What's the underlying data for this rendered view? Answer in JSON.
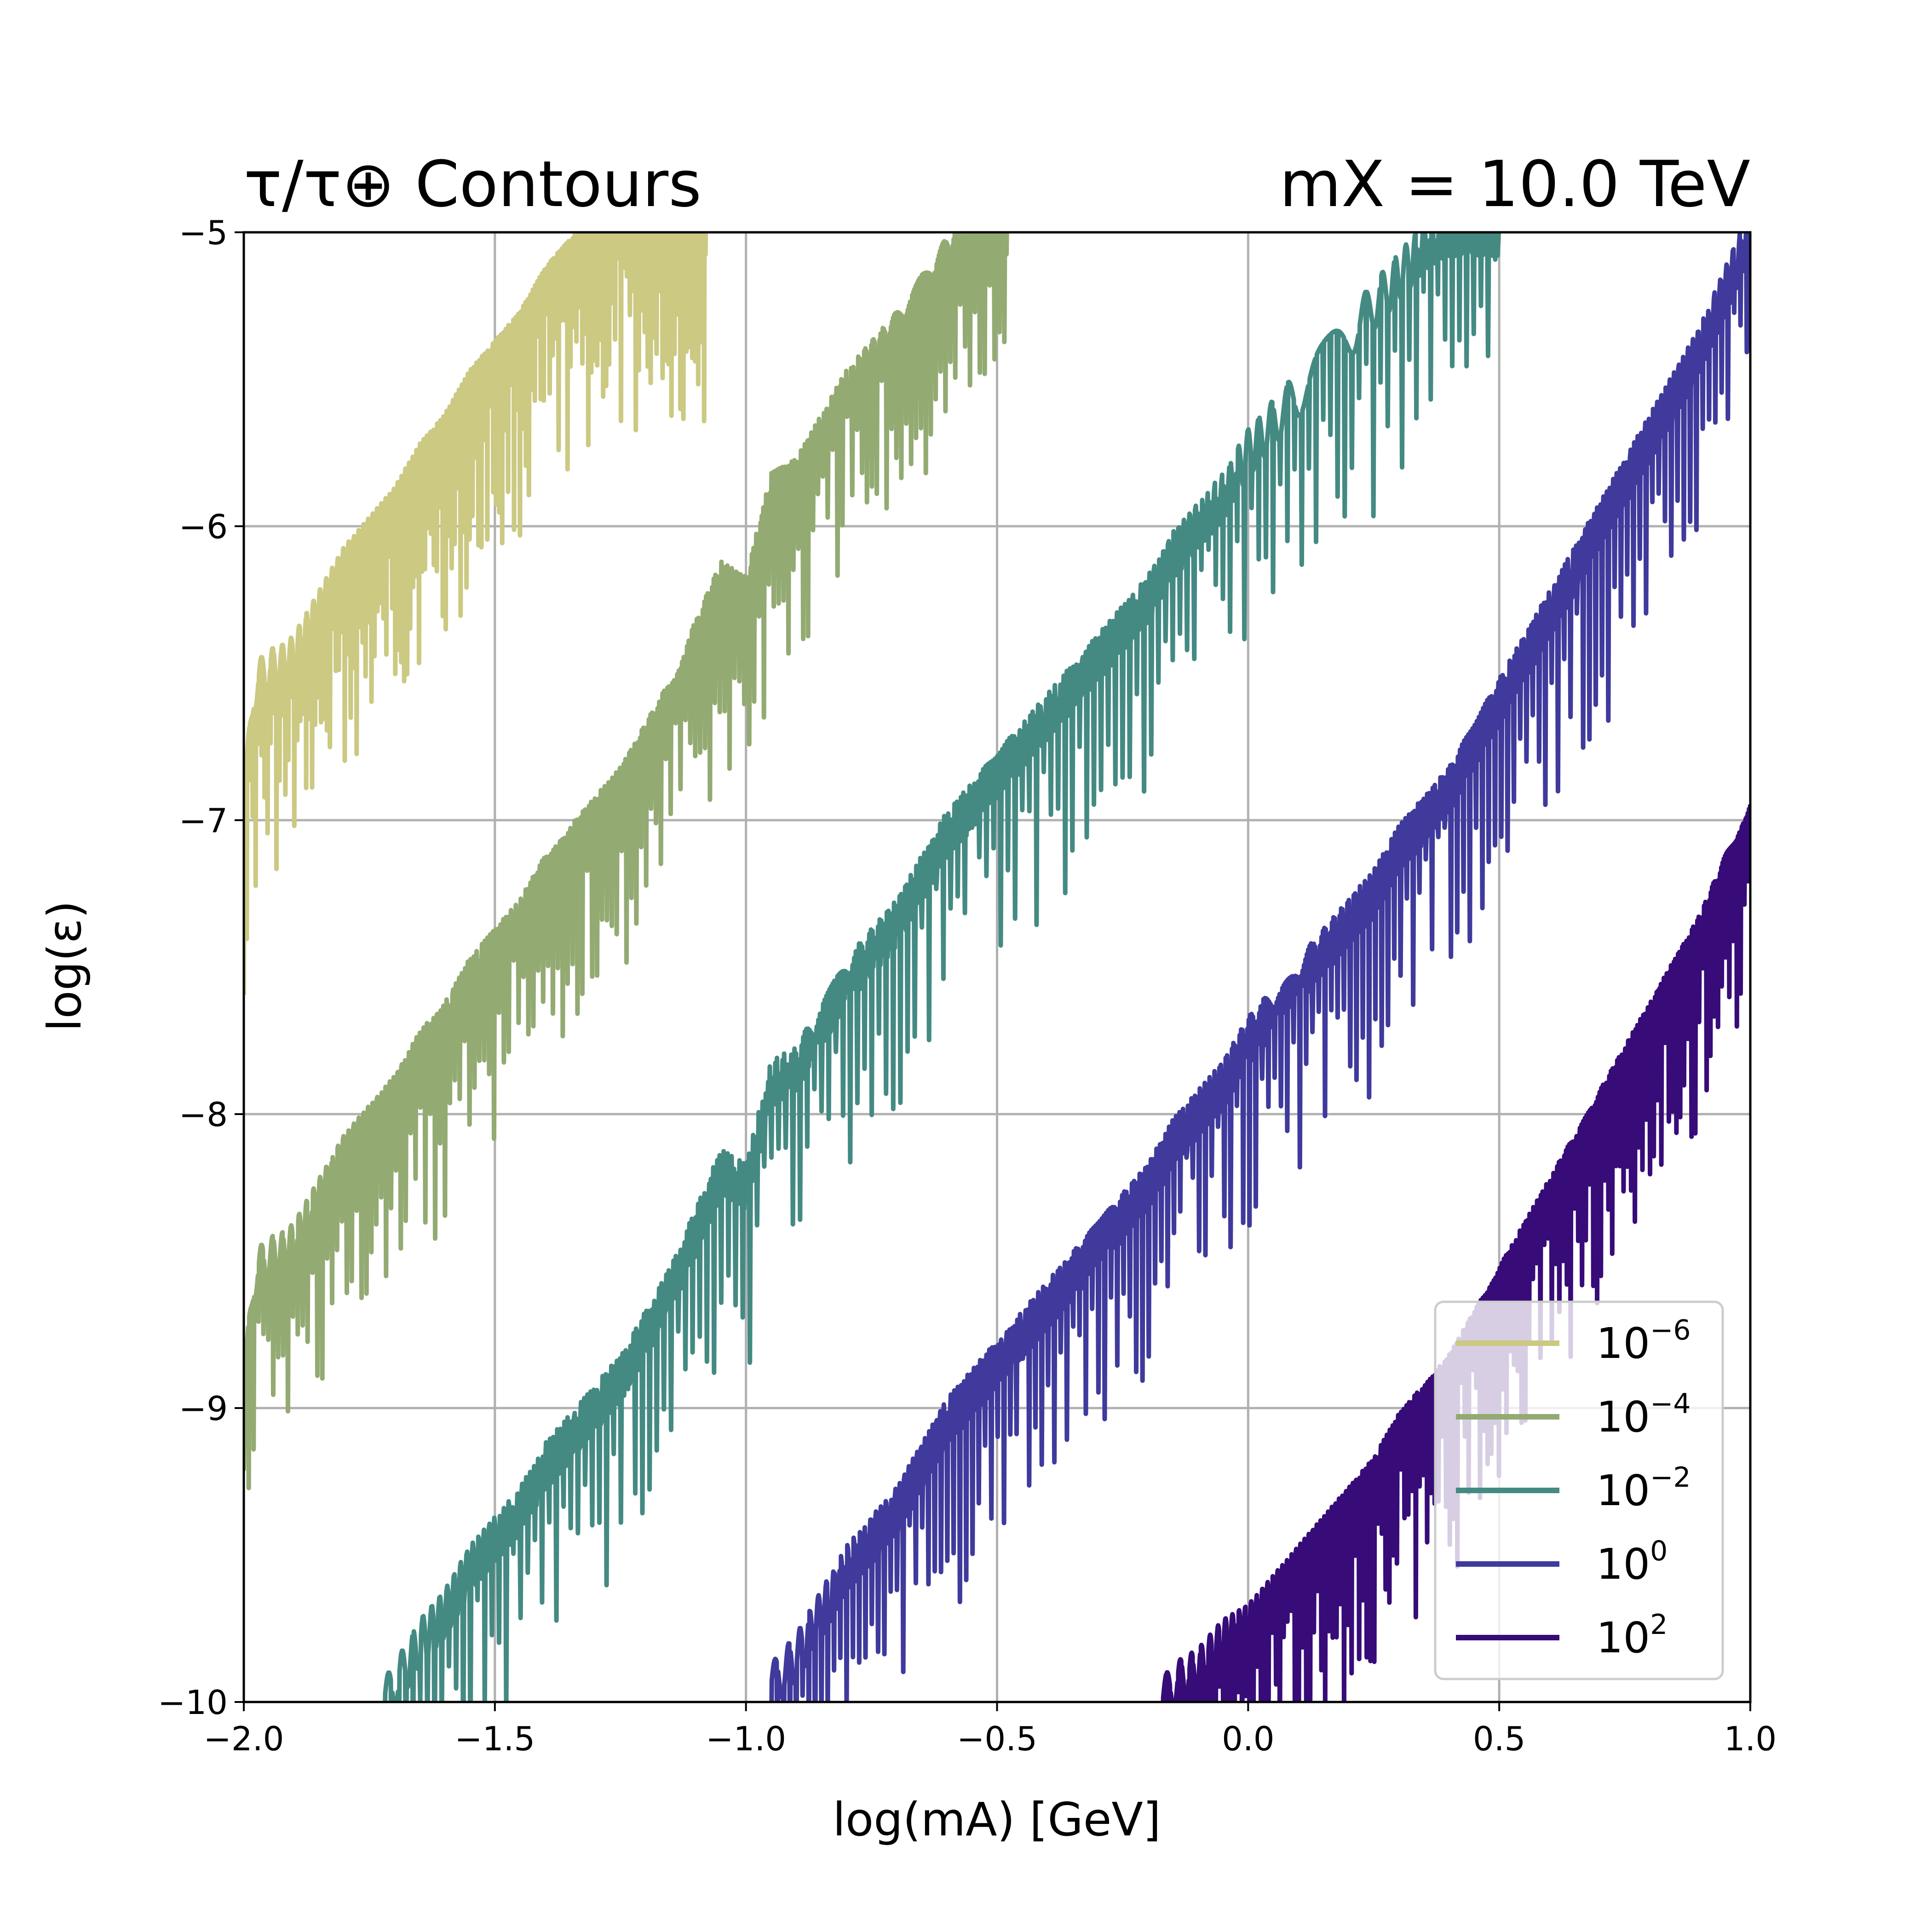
{
  "chart_data": {
    "type": "line",
    "title_left": "τ/τ⊕ Contours",
    "title_right": "mX = 10.0 TeV",
    "xlabel": "log(mA) [GeV]",
    "ylabel": "log(ε)",
    "xlim": [
      -2.0,
      1.0
    ],
    "ylim": [
      -10,
      -5
    ],
    "xticks": [
      -2.0,
      -1.5,
      -1.0,
      -0.5,
      0.0,
      0.5,
      1.0
    ],
    "xtick_labels": [
      "−2.0",
      "−1.5",
      "−1.0",
      "−0.5",
      "0.0",
      "0.5",
      "1.0"
    ],
    "yticks": [
      -10,
      -9,
      -8,
      -7,
      -6,
      -5
    ],
    "ytick_labels": [
      "−10",
      "−9",
      "−8",
      "−7",
      "−6",
      "−5"
    ],
    "grid": true,
    "legend_position": "bottom-right",
    "series": [
      {
        "name": "10^-6",
        "base": "10",
        "exponent": "−6",
        "color": "#cbc982",
        "x": [
          -2.0,
          -1.98,
          -1.95,
          -1.92,
          -1.9,
          -1.85,
          -1.8,
          -1.75,
          -1.7,
          -1.65,
          -1.6,
          -1.55,
          -1.5,
          -1.45,
          -1.4,
          -1.35,
          -1.3,
          -1.25,
          -1.2,
          -1.15,
          -1.1,
          -1.08
        ],
        "y": [
          -7.0,
          -6.55,
          -6.5,
          -6.48,
          -6.45,
          -6.3,
          -6.15,
          -6.05,
          -5.95,
          -5.8,
          -5.7,
          -5.55,
          -5.45,
          -5.35,
          -5.2,
          -5.1,
          -5.02,
          -5.0,
          -5.0,
          -5.0,
          -5.0,
          -5.0
        ]
      },
      {
        "name": "10^-4",
        "base": "10",
        "exponent": "−4",
        "color": "#93aa72",
        "x": [
          -2.0,
          -1.98,
          -1.95,
          -1.92,
          -1.9,
          -1.85,
          -1.8,
          -1.75,
          -1.7,
          -1.65,
          -1.6,
          -1.55,
          -1.5,
          -1.45,
          -1.4,
          -1.35,
          -1.3,
          -1.25,
          -1.2,
          -1.15,
          -1.1,
          -1.05,
          -1.0,
          -0.95,
          -0.9,
          -0.85,
          -0.8,
          -0.75,
          -0.7,
          -0.65,
          -0.6,
          -0.55,
          -0.5,
          -0.48
        ],
        "y": [
          -9.0,
          -8.55,
          -8.5,
          -8.48,
          -8.45,
          -8.3,
          -8.15,
          -8.05,
          -7.95,
          -7.8,
          -7.7,
          -7.55,
          -7.45,
          -7.35,
          -7.2,
          -7.1,
          -7.0,
          -6.9,
          -6.75,
          -6.6,
          -6.4,
          -6.2,
          -6.25,
          -5.9,
          -5.85,
          -5.7,
          -5.55,
          -5.45,
          -5.35,
          -5.2,
          -5.1,
          -5.02,
          -5.0,
          -5.0
        ]
      },
      {
        "name": "10^-2",
        "base": "10",
        "exponent": "−2",
        "color": "#448a83",
        "x": [
          -1.72,
          -1.7,
          -1.65,
          -1.6,
          -1.55,
          -1.5,
          -1.45,
          -1.4,
          -1.35,
          -1.3,
          -1.25,
          -1.2,
          -1.15,
          -1.1,
          -1.05,
          -1.0,
          -0.95,
          -0.9,
          -0.85,
          -0.8,
          -0.75,
          -0.7,
          -0.65,
          -0.6,
          -0.55,
          -0.5,
          -0.45,
          -0.4,
          -0.35,
          -0.3,
          -0.25,
          -0.2,
          -0.15,
          -0.1,
          -0.05,
          0.0,
          0.05,
          0.1,
          0.15,
          0.2,
          0.25,
          0.3,
          0.35,
          0.4,
          0.45,
          0.5
        ],
        "y": [
          -10.0,
          -9.95,
          -9.8,
          -9.7,
          -9.55,
          -9.45,
          -9.35,
          -9.2,
          -9.1,
          -9.0,
          -8.9,
          -8.75,
          -8.6,
          -8.4,
          -8.2,
          -8.25,
          -7.9,
          -7.85,
          -7.7,
          -7.55,
          -7.45,
          -7.35,
          -7.2,
          -7.05,
          -6.95,
          -6.85,
          -6.75,
          -6.65,
          -6.55,
          -6.45,
          -6.35,
          -6.25,
          -6.1,
          -6.0,
          -5.9,
          -5.75,
          -5.65,
          -5.55,
          -5.45,
          -5.35,
          -5.25,
          -5.15,
          -5.05,
          -5.0,
          -5.0,
          -5.0
        ]
      },
      {
        "name": "10^0",
        "base": "10",
        "exponent": "0",
        "color": "#3f3a9c",
        "x": [
          -0.95,
          -0.9,
          -0.85,
          -0.8,
          -0.75,
          -0.7,
          -0.65,
          -0.6,
          -0.55,
          -0.5,
          -0.45,
          -0.4,
          -0.35,
          -0.3,
          -0.25,
          -0.2,
          -0.15,
          -0.1,
          -0.05,
          0.0,
          0.05,
          0.1,
          0.15,
          0.2,
          0.25,
          0.3,
          0.35,
          0.4,
          0.45,
          0.5,
          0.55,
          0.6,
          0.65,
          0.7,
          0.75,
          0.8,
          0.85,
          0.9,
          0.95,
          1.0
        ],
        "y": [
          -9.95,
          -9.85,
          -9.7,
          -9.55,
          -9.45,
          -9.35,
          -9.2,
          -9.05,
          -8.95,
          -8.85,
          -8.75,
          -8.65,
          -8.55,
          -8.45,
          -8.35,
          -8.25,
          -8.1,
          -8.0,
          -7.9,
          -7.75,
          -7.65,
          -7.55,
          -7.45,
          -7.35,
          -7.25,
          -7.1,
          -7.0,
          -6.9,
          -6.75,
          -6.6,
          -6.45,
          -6.3,
          -6.15,
          -6.0,
          -5.85,
          -5.7,
          -5.55,
          -5.4,
          -5.2,
          -5.0
        ]
      },
      {
        "name": "10^2",
        "base": "10",
        "exponent": "2",
        "color": "#370b78",
        "x": [
          -0.17,
          -0.15,
          -0.1,
          -0.05,
          0.0,
          0.05,
          0.1,
          0.15,
          0.2,
          0.25,
          0.3,
          0.35,
          0.4,
          0.45,
          0.5,
          0.55,
          0.6,
          0.65,
          0.7,
          0.75,
          0.8,
          0.85,
          0.9,
          0.95,
          1.0
        ],
        "y": [
          -10.0,
          -9.95,
          -9.9,
          -9.8,
          -9.75,
          -9.65,
          -9.55,
          -9.45,
          -9.35,
          -9.25,
          -9.1,
          -9.0,
          -8.9,
          -8.75,
          -8.6,
          -8.45,
          -8.3,
          -8.15,
          -8.0,
          -7.85,
          -7.7,
          -7.55,
          -7.4,
          -7.2,
          -7.0
        ]
      }
    ]
  }
}
